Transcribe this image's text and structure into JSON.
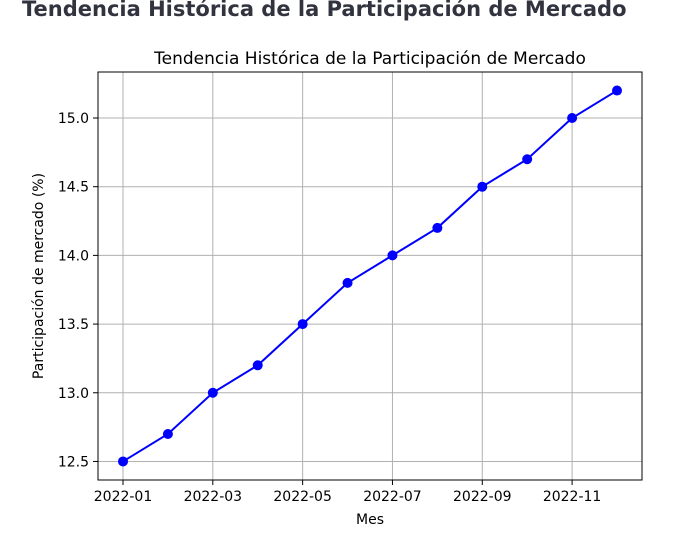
{
  "page": {
    "heading": "Tendencia Histórica de la Participación de Mercado"
  },
  "chart_data": {
    "type": "line",
    "title": "Tendencia Histórica de la Participación de Mercado",
    "xlabel": "Mes",
    "ylabel": "Participación de mercado (%)",
    "x": [
      "2022-01",
      "2022-02",
      "2022-03",
      "2022-04",
      "2022-05",
      "2022-06",
      "2022-07",
      "2022-08",
      "2022-09",
      "2022-10",
      "2022-11",
      "2022-12"
    ],
    "xticks": [
      "2022-01",
      "2022-03",
      "2022-05",
      "2022-07",
      "2022-09",
      "2022-11"
    ],
    "yticks": [
      "12.5",
      "13.0",
      "13.5",
      "14.0",
      "14.5",
      "15.0"
    ],
    "series": [
      {
        "name": "Participación de mercado",
        "values": [
          12.5,
          12.7,
          13.0,
          13.2,
          13.5,
          13.8,
          14.0,
          14.2,
          14.5,
          14.7,
          15.0,
          15.2
        ],
        "color": "#0000ff",
        "marker": "circle"
      }
    ],
    "ylim": [
      12.365,
      15.335
    ],
    "grid": true,
    "legend": "none"
  }
}
